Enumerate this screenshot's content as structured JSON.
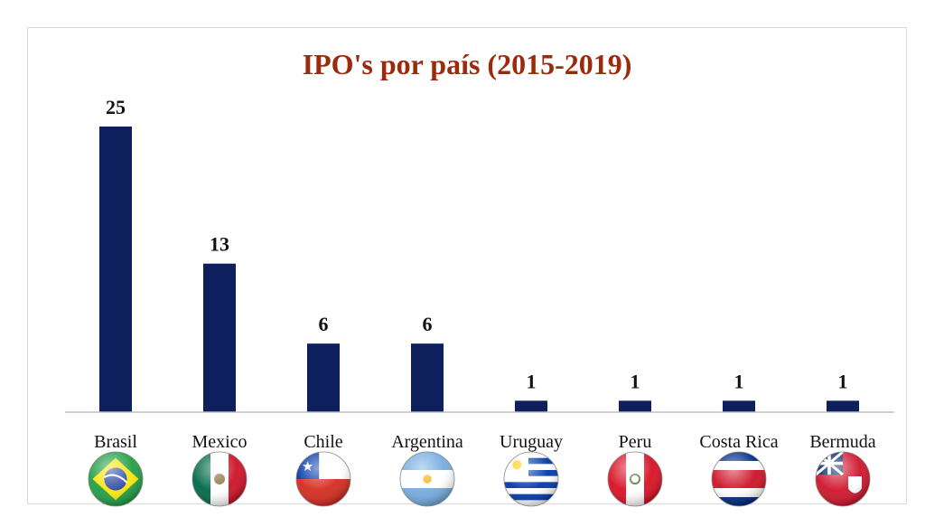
{
  "chart_data": {
    "type": "bar",
    "title": "IPO's por país (2015-2019)",
    "categories": [
      "Brasil",
      "Mexico",
      "Chile",
      "Argentina",
      "Uruguay",
      "Peru",
      "Costa Rica",
      "Bermuda"
    ],
    "values": [
      25,
      13,
      6,
      6,
      1,
      1,
      1,
      1
    ],
    "flags": [
      "brazil-flag-icon",
      "mexico-flag-icon",
      "chile-flag-icon",
      "argentina-flag-icon",
      "uruguay-flag-icon",
      "peru-flag-icon",
      "costa-rica-flag-icon",
      "bermuda-flag-icon"
    ],
    "ylim": [
      0,
      25
    ],
    "grid": false,
    "legend": "none",
    "colors": {
      "bar": "#0d1f5c",
      "title": "#9b2b0c",
      "axis": "#bfbfbf"
    }
  }
}
